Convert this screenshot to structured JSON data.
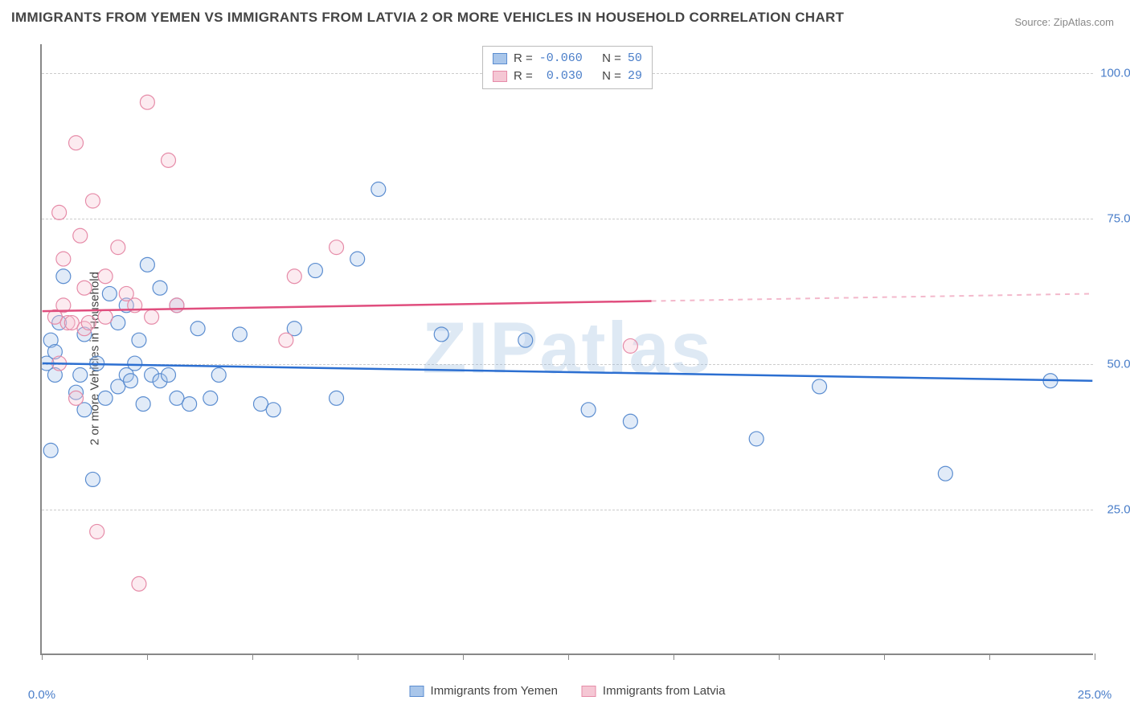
{
  "title": "IMMIGRANTS FROM YEMEN VS IMMIGRANTS FROM LATVIA 2 OR MORE VEHICLES IN HOUSEHOLD CORRELATION CHART",
  "source": "Source: ZipAtlas.com",
  "watermark": "ZIPatlas",
  "y_axis_label": "2 or more Vehicles in Household",
  "chart": {
    "type": "scatter",
    "background_color": "#ffffff",
    "grid_color": "#cccccc",
    "axis_color": "#888888",
    "xlim": [
      0,
      25
    ],
    "ylim": [
      0,
      105
    ],
    "x_ticks": [
      0,
      2.5,
      5,
      7.5,
      10,
      12.5,
      15,
      17.5,
      20,
      22.5,
      25
    ],
    "x_tick_labels": {
      "0": "0.0%",
      "25": "25.0%"
    },
    "y_ticks": [
      25,
      50,
      75,
      100
    ],
    "y_tick_format": "%.1f%%",
    "marker_radius": 9,
    "marker_fill_opacity": 0.35,
    "marker_stroke_width": 1.2,
    "series": [
      {
        "name": "Immigrants from Yemen",
        "key": "yemen",
        "color_fill": "#a9c6ea",
        "color_stroke": "#5b8dd0",
        "trend_color": "#2c6fd1",
        "R": "-0.060",
        "N": "50",
        "trend": {
          "x1": 0,
          "y1": 50,
          "x2": 25,
          "y2": 47,
          "solid_until_x": 25
        },
        "points": [
          [
            0.1,
            50
          ],
          [
            0.2,
            54
          ],
          [
            0.3,
            48
          ],
          [
            0.3,
            52
          ],
          [
            0.4,
            57
          ],
          [
            0.2,
            35
          ],
          [
            0.5,
            65
          ],
          [
            0.8,
            45
          ],
          [
            0.9,
            48
          ],
          [
            1.0,
            55
          ],
          [
            1.0,
            42
          ],
          [
            1.2,
            30
          ],
          [
            1.3,
            50
          ],
          [
            1.5,
            44
          ],
          [
            1.6,
            62
          ],
          [
            1.8,
            46
          ],
          [
            1.8,
            57
          ],
          [
            2.0,
            60
          ],
          [
            2.0,
            48
          ],
          [
            2.1,
            47
          ],
          [
            2.2,
            50
          ],
          [
            2.3,
            54
          ],
          [
            2.4,
            43
          ],
          [
            2.5,
            67
          ],
          [
            2.6,
            48
          ],
          [
            2.8,
            63
          ],
          [
            2.8,
            47
          ],
          [
            3.0,
            48
          ],
          [
            3.2,
            44
          ],
          [
            3.2,
            60
          ],
          [
            3.5,
            43
          ],
          [
            3.7,
            56
          ],
          [
            4.0,
            44
          ],
          [
            4.2,
            48
          ],
          [
            4.7,
            55
          ],
          [
            5.2,
            43
          ],
          [
            5.5,
            42
          ],
          [
            6.0,
            56
          ],
          [
            6.5,
            66
          ],
          [
            7.0,
            44
          ],
          [
            7.5,
            68
          ],
          [
            8.0,
            80
          ],
          [
            9.5,
            55
          ],
          [
            11.5,
            54
          ],
          [
            13.0,
            42
          ],
          [
            14.0,
            40
          ],
          [
            17.0,
            37
          ],
          [
            18.5,
            46
          ],
          [
            21.5,
            31
          ],
          [
            24.0,
            47
          ]
        ]
      },
      {
        "name": "Immigrants from Latvia",
        "key": "latvia",
        "color_fill": "#f5c7d4",
        "color_stroke": "#e68ba8",
        "trend_color": "#e04e7e",
        "R": "0.030",
        "N": "29",
        "trend": {
          "x1": 0,
          "y1": 59,
          "x2": 25,
          "y2": 62,
          "solid_until_x": 14.5
        },
        "points": [
          [
            0.3,
            58
          ],
          [
            0.4,
            50
          ],
          [
            0.4,
            76
          ],
          [
            0.5,
            60
          ],
          [
            0.5,
            68
          ],
          [
            0.6,
            57
          ],
          [
            0.7,
            57
          ],
          [
            0.8,
            88
          ],
          [
            0.8,
            44
          ],
          [
            0.9,
            72
          ],
          [
            1.0,
            56
          ],
          [
            1.0,
            63
          ],
          [
            1.1,
            57
          ],
          [
            1.2,
            78
          ],
          [
            1.3,
            21
          ],
          [
            1.5,
            65
          ],
          [
            1.5,
            58
          ],
          [
            1.8,
            70
          ],
          [
            2.0,
            62
          ],
          [
            2.2,
            60
          ],
          [
            2.3,
            12
          ],
          [
            2.5,
            95
          ],
          [
            2.6,
            58
          ],
          [
            3.0,
            85
          ],
          [
            3.2,
            60
          ],
          [
            5.8,
            54
          ],
          [
            6.0,
            65
          ],
          [
            7.0,
            70
          ],
          [
            14.0,
            53
          ]
        ]
      }
    ]
  },
  "legend_top": {
    "r_label": "R =",
    "n_label": "N ="
  },
  "legend_bottom_items": [
    "Immigrants from Yemen",
    "Immigrants from Latvia"
  ]
}
